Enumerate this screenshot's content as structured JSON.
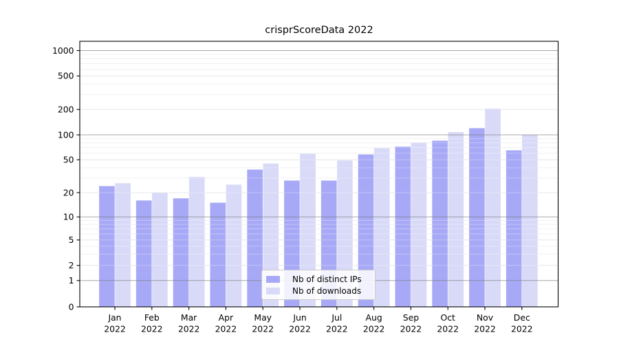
{
  "chart_data": {
    "type": "bar",
    "title": "crisprScoreData 2022",
    "categories": [
      "Jan 2022",
      "Feb 2022",
      "Mar 2022",
      "Apr 2022",
      "May 2022",
      "Jun 2022",
      "Jul 2022",
      "Aug 2022",
      "Sep 2022",
      "Oct 2022",
      "Nov 2022",
      "Dec 2022"
    ],
    "series": [
      {
        "name": "Nb of distinct IPs",
        "color": "#a7a9f6",
        "values": [
          24,
          16,
          17,
          15,
          38,
          28,
          28,
          58,
          72,
          85,
          120,
          65
        ]
      },
      {
        "name": "Nb of downloads",
        "color": "#d9daf8",
        "values": [
          26,
          20,
          31,
          25,
          45,
          59,
          49,
          69,
          81,
          108,
          205,
          100
        ]
      }
    ],
    "y_ticks": [
      0,
      1,
      2,
      5,
      10,
      20,
      50,
      100,
      200,
      500,
      1000
    ],
    "y_scale": "symlog",
    "ylim": [
      0,
      1250
    ],
    "grid": true,
    "legend_position": "lower center",
    "x_tick_year": "2022"
  }
}
